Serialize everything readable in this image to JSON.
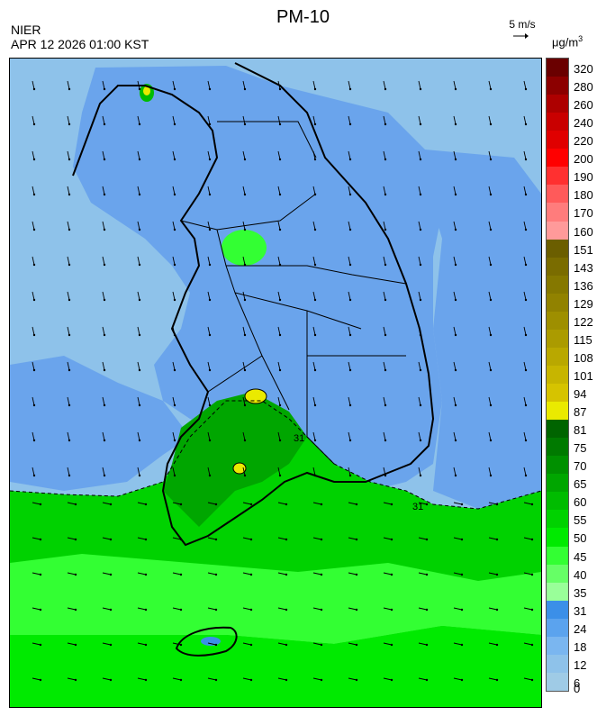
{
  "header": {
    "title": "PM-10",
    "org": "NIER",
    "datetime": "APR 12 2026 01:00 KST",
    "wind_scale": "5 m/s",
    "unit": "μg/m",
    "unit_exp": "3"
  },
  "legend": {
    "labels": [
      "320",
      "280",
      "260",
      "240",
      "220",
      "200",
      "190",
      "180",
      "170",
      "160",
      "151",
      "143",
      "136",
      "129",
      "122",
      "115",
      "108",
      "101",
      "94",
      "87",
      "81",
      "75",
      "70",
      "65",
      "60",
      "55",
      "50",
      "45",
      "40",
      "35",
      "31",
      "24",
      "18",
      "12",
      "6",
      "0"
    ],
    "colors": [
      "#6a0000",
      "#8c0000",
      "#ad0000",
      "#c90000",
      "#e00000",
      "#ff0000",
      "#ff3030",
      "#ff5a5a",
      "#ff7c7c",
      "#ff9a9a",
      "#6b5e00",
      "#7a6c00",
      "#857800",
      "#918200",
      "#9e8f00",
      "#ab9b00",
      "#b9a800",
      "#c7b500",
      "#d6c300",
      "#eaea00",
      "#006400",
      "#007a00",
      "#009000",
      "#00a600",
      "#00bc00",
      "#00d200",
      "#00ea00",
      "#33ff33",
      "#66ff66",
      "#99ff99",
      "#3b8fe8",
      "#5ba3ee",
      "#7ab6f0",
      "#8ec2ea",
      "#9fcbe6"
    ]
  },
  "map": {
    "contour_labels": [
      "31",
      "31"
    ],
    "base_color_clean": "#8ec2ea",
    "base_color_mid": "#6aa4ec",
    "base_color_green": "#00d200"
  }
}
